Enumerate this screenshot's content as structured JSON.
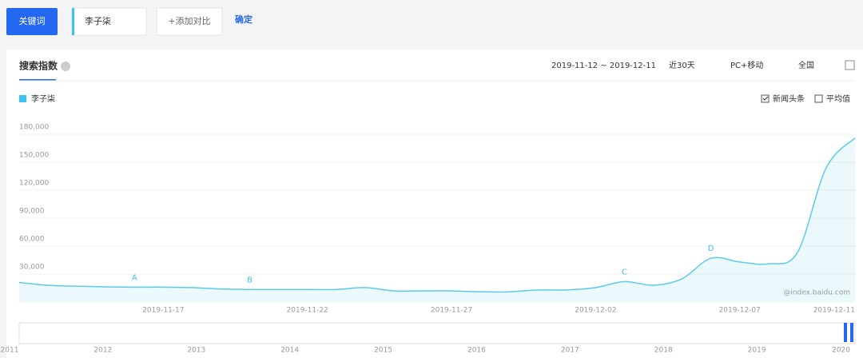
{
  "ui": {
    "keyword_button": "关键词",
    "keyword_input": "李子柒",
    "add_compare": "+添加对比",
    "confirm": "确定",
    "panel_title": "搜索指数",
    "date_range": "2019-11-12 ~ 2019-12-11",
    "period": "近30天",
    "device": "PC+移动",
    "region": "全国",
    "checkboxes": [
      "新闻头条",
      "平均值"
    ],
    "watermark": "@index.baidu.com",
    "timeline_years": [
      "2011",
      "2012",
      "2013",
      "2014",
      "2015",
      "2016",
      "2017",
      "2018",
      "2019",
      "2020"
    ]
  },
  "chart_data": {
    "type": "line",
    "categories": [
      null,
      null,
      null,
      null,
      null,
      "2019-11-17",
      null,
      null,
      null,
      null,
      "2019-11-22",
      null,
      null,
      null,
      null,
      "2019-11-27",
      null,
      null,
      null,
      null,
      "2019-12-02",
      null,
      null,
      null,
      null,
      "2019-12-07",
      null,
      null,
      null,
      "2019-12-11"
    ],
    "series": [
      {
        "name": "李子柒",
        "color": "#5bcbeb",
        "values": [
          21000,
          18000,
          17000,
          16300,
          16000,
          16000,
          15500,
          14000,
          13500,
          13500,
          13500,
          13500,
          15500,
          12000,
          12000,
          12000,
          11000,
          11000,
          13000,
          13000,
          15500,
          22000,
          18000,
          25000,
          47000,
          43000,
          41000,
          53000,
          144000,
          176000
        ]
      }
    ],
    "annotations": [
      "A",
      "B",
      "C",
      "D"
    ],
    "ylim": [
      0,
      180000
    ],
    "yticks": [
      {
        "value": 30000,
        "label": "30,000"
      },
      {
        "value": 60000,
        "label": "60,000"
      },
      {
        "value": 90000,
        "label": "90,000"
      },
      {
        "value": 120000,
        "label": "120,000"
      },
      {
        "value": 150000,
        "label": "150,000"
      },
      {
        "value": 180000,
        "label": "180,000"
      }
    ],
    "grid": true
  }
}
